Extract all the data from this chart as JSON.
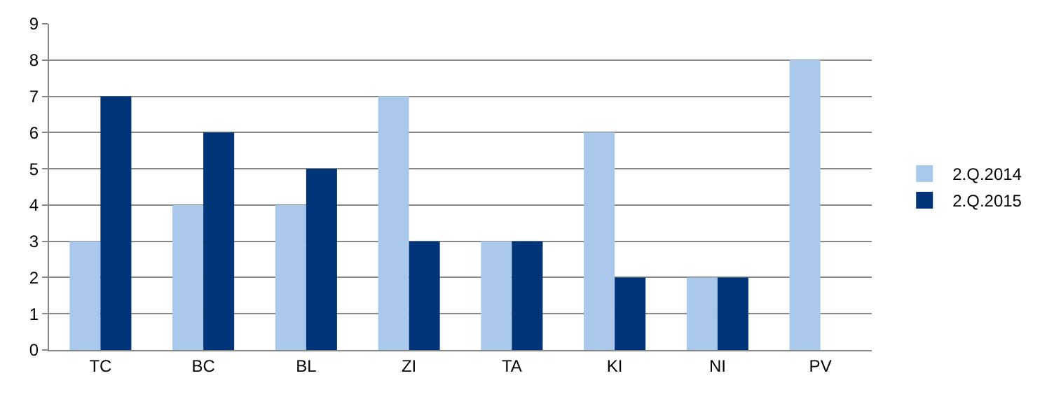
{
  "chart_data": {
    "type": "bar",
    "categories": [
      "TC",
      "BC",
      "BL",
      "ZI",
      "TA",
      "KI",
      "NI",
      "PV"
    ],
    "series": [
      {
        "name": "2.Q.2014",
        "color": "#a9c8ec",
        "values": [
          3,
          4,
          4,
          7,
          3,
          6,
          2,
          8
        ]
      },
      {
        "name": "2.Q.2015",
        "color": "#003478",
        "values": [
          7,
          6,
          5,
          3,
          3,
          2,
          2,
          null
        ]
      }
    ],
    "ylim": [
      0,
      9
    ],
    "yticks": [
      0,
      1,
      2,
      3,
      4,
      5,
      6,
      7,
      8,
      9
    ],
    "grid": "y",
    "legend": "right"
  }
}
